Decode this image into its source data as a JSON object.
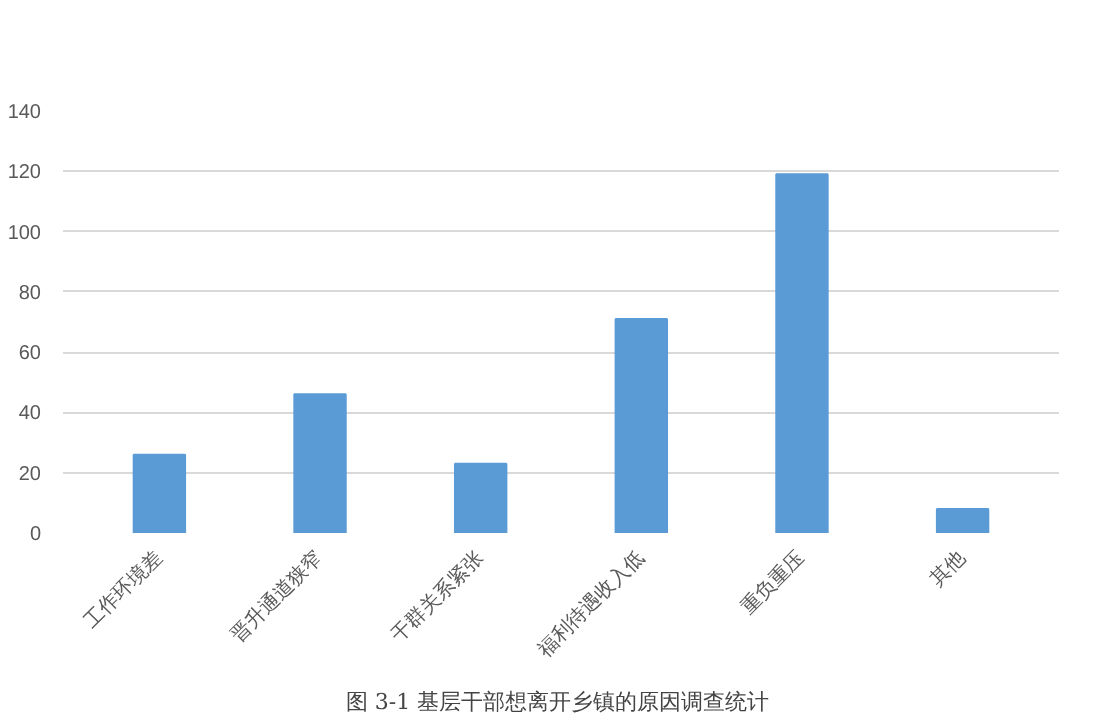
{
  "chart_data": {
    "type": "bar",
    "categories": [
      "工作环境差",
      "晋升通道狭窄",
      "干群关系紧张",
      "福利待遇收入低",
      "重负重压",
      "其他"
    ],
    "values": [
      26,
      46,
      23,
      71,
      119,
      8
    ],
    "color": "#5b9bd5",
    "ylim": [
      0,
      140
    ],
    "yticks": [
      0,
      20,
      40,
      60,
      80,
      100,
      120,
      140
    ],
    "grid": "y",
    "annotations": [
      "图 3-1  基层干部想离开乡镇的原因调查统计"
    ]
  }
}
